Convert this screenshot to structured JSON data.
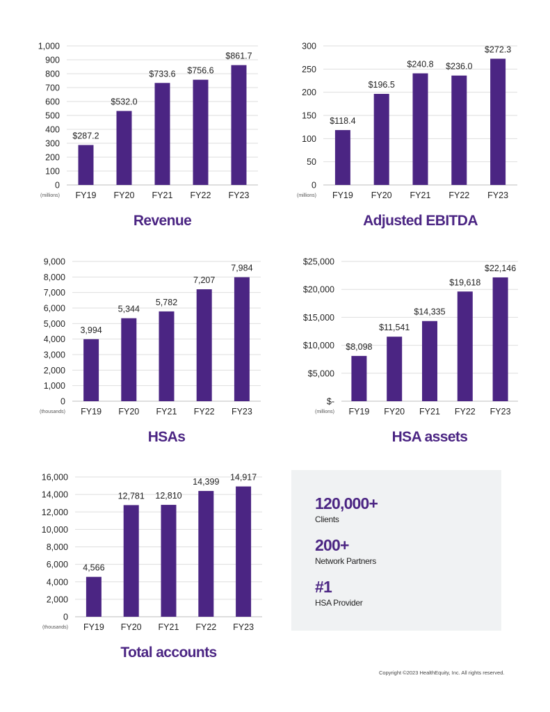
{
  "chart_data": [
    {
      "id": "revenue",
      "type": "bar",
      "title": "Revenue",
      "unit_label": "(millions)",
      "categories": [
        "FY19",
        "FY20",
        "FY21",
        "FY22",
        "FY23"
      ],
      "values": [
        287.2,
        532.0,
        733.6,
        756.6,
        861.7
      ],
      "value_labels": [
        "$287.2",
        "$532.0",
        "$733.6",
        "$756.6",
        "$861.7"
      ],
      "ylim": [
        0,
        1000
      ],
      "ticks": [
        0,
        100,
        200,
        300,
        400,
        500,
        600,
        700,
        800,
        900,
        1000
      ],
      "tick_labels": [
        "0",
        "100",
        "200",
        "300",
        "400",
        "500",
        "600",
        "700",
        "800",
        "900",
        "1,000"
      ],
      "grid": true
    },
    {
      "id": "ebitda",
      "type": "bar",
      "title": "Adjusted EBITDA",
      "unit_label": "(millions)",
      "categories": [
        "FY19",
        "FY20",
        "FY21",
        "FY22",
        "FY23"
      ],
      "values": [
        118.4,
        196.5,
        240.8,
        236.0,
        272.3
      ],
      "value_labels": [
        "$118.4",
        "$196.5",
        "$240.8",
        "$236.0",
        "$272.3"
      ],
      "ylim": [
        0,
        300
      ],
      "ticks": [
        0,
        50,
        100,
        150,
        200,
        250,
        300
      ],
      "tick_labels": [
        "0",
        "50",
        "100",
        "150",
        "200",
        "250",
        "300"
      ],
      "grid": true
    },
    {
      "id": "hsas",
      "type": "bar",
      "title": "HSAs",
      "unit_label": "(thousands)",
      "categories": [
        "FY19",
        "FY20",
        "FY21",
        "FY22",
        "FY23"
      ],
      "values": [
        3994,
        5344,
        5782,
        7207,
        7984
      ],
      "value_labels": [
        "3,994",
        "5,344",
        "5,782",
        "7,207",
        "7,984"
      ],
      "ylim": [
        0,
        9000
      ],
      "ticks": [
        0,
        1000,
        2000,
        3000,
        4000,
        5000,
        6000,
        7000,
        8000,
        9000
      ],
      "tick_labels": [
        "0",
        "1,000",
        "2,000",
        "3,000",
        "4,000",
        "5,000",
        "6,000",
        "7,000",
        "8,000",
        "9,000"
      ],
      "grid": true
    },
    {
      "id": "hsa-assets",
      "type": "bar",
      "title": "HSA assets",
      "unit_label": "(millions)",
      "categories": [
        "FY19",
        "FY20",
        "FY21",
        "FY22",
        "FY23"
      ],
      "values": [
        8098,
        11541,
        14335,
        19618,
        22146
      ],
      "value_labels": [
        "$8,098",
        "$11,541",
        "$14,335",
        "$19,618",
        "$22,146"
      ],
      "ylim": [
        0,
        25000
      ],
      "ticks": [
        0,
        5000,
        10000,
        15000,
        20000,
        25000
      ],
      "tick_labels": [
        "$-",
        "$5,000",
        "$10,000",
        "$15,000",
        "$20,000",
        "$25,000"
      ],
      "grid": true
    },
    {
      "id": "total-accounts",
      "type": "bar",
      "title": "Total accounts",
      "unit_label": "(thousands)",
      "categories": [
        "FY19",
        "FY20",
        "FY21",
        "FY22",
        "FY23"
      ],
      "values": [
        4566,
        12781,
        12810,
        14399,
        14917
      ],
      "value_labels": [
        "4,566",
        "12,781",
        "12,810",
        "14,399",
        "14,917"
      ],
      "ylim": [
        0,
        16000
      ],
      "ticks": [
        0,
        2000,
        4000,
        6000,
        8000,
        10000,
        12000,
        14000,
        16000
      ],
      "tick_labels": [
        "0",
        "2,000",
        "4,000",
        "6,000",
        "8,000",
        "10,000",
        "12,000",
        "14,000",
        "16,000"
      ],
      "grid": true
    }
  ],
  "stats": [
    {
      "value": "120,000+",
      "label": "Clients"
    },
    {
      "value": "200+",
      "label": "Network Partners"
    },
    {
      "value": "#1",
      "label": "HSA Provider"
    }
  ],
  "copyright": "Copyright ©2023 HealthEquity, Inc. All rights reserved.",
  "colors": {
    "bar": "#4b2583",
    "title": "#4b2583",
    "grid": "#dedede",
    "panel": "#f0f2f3"
  }
}
